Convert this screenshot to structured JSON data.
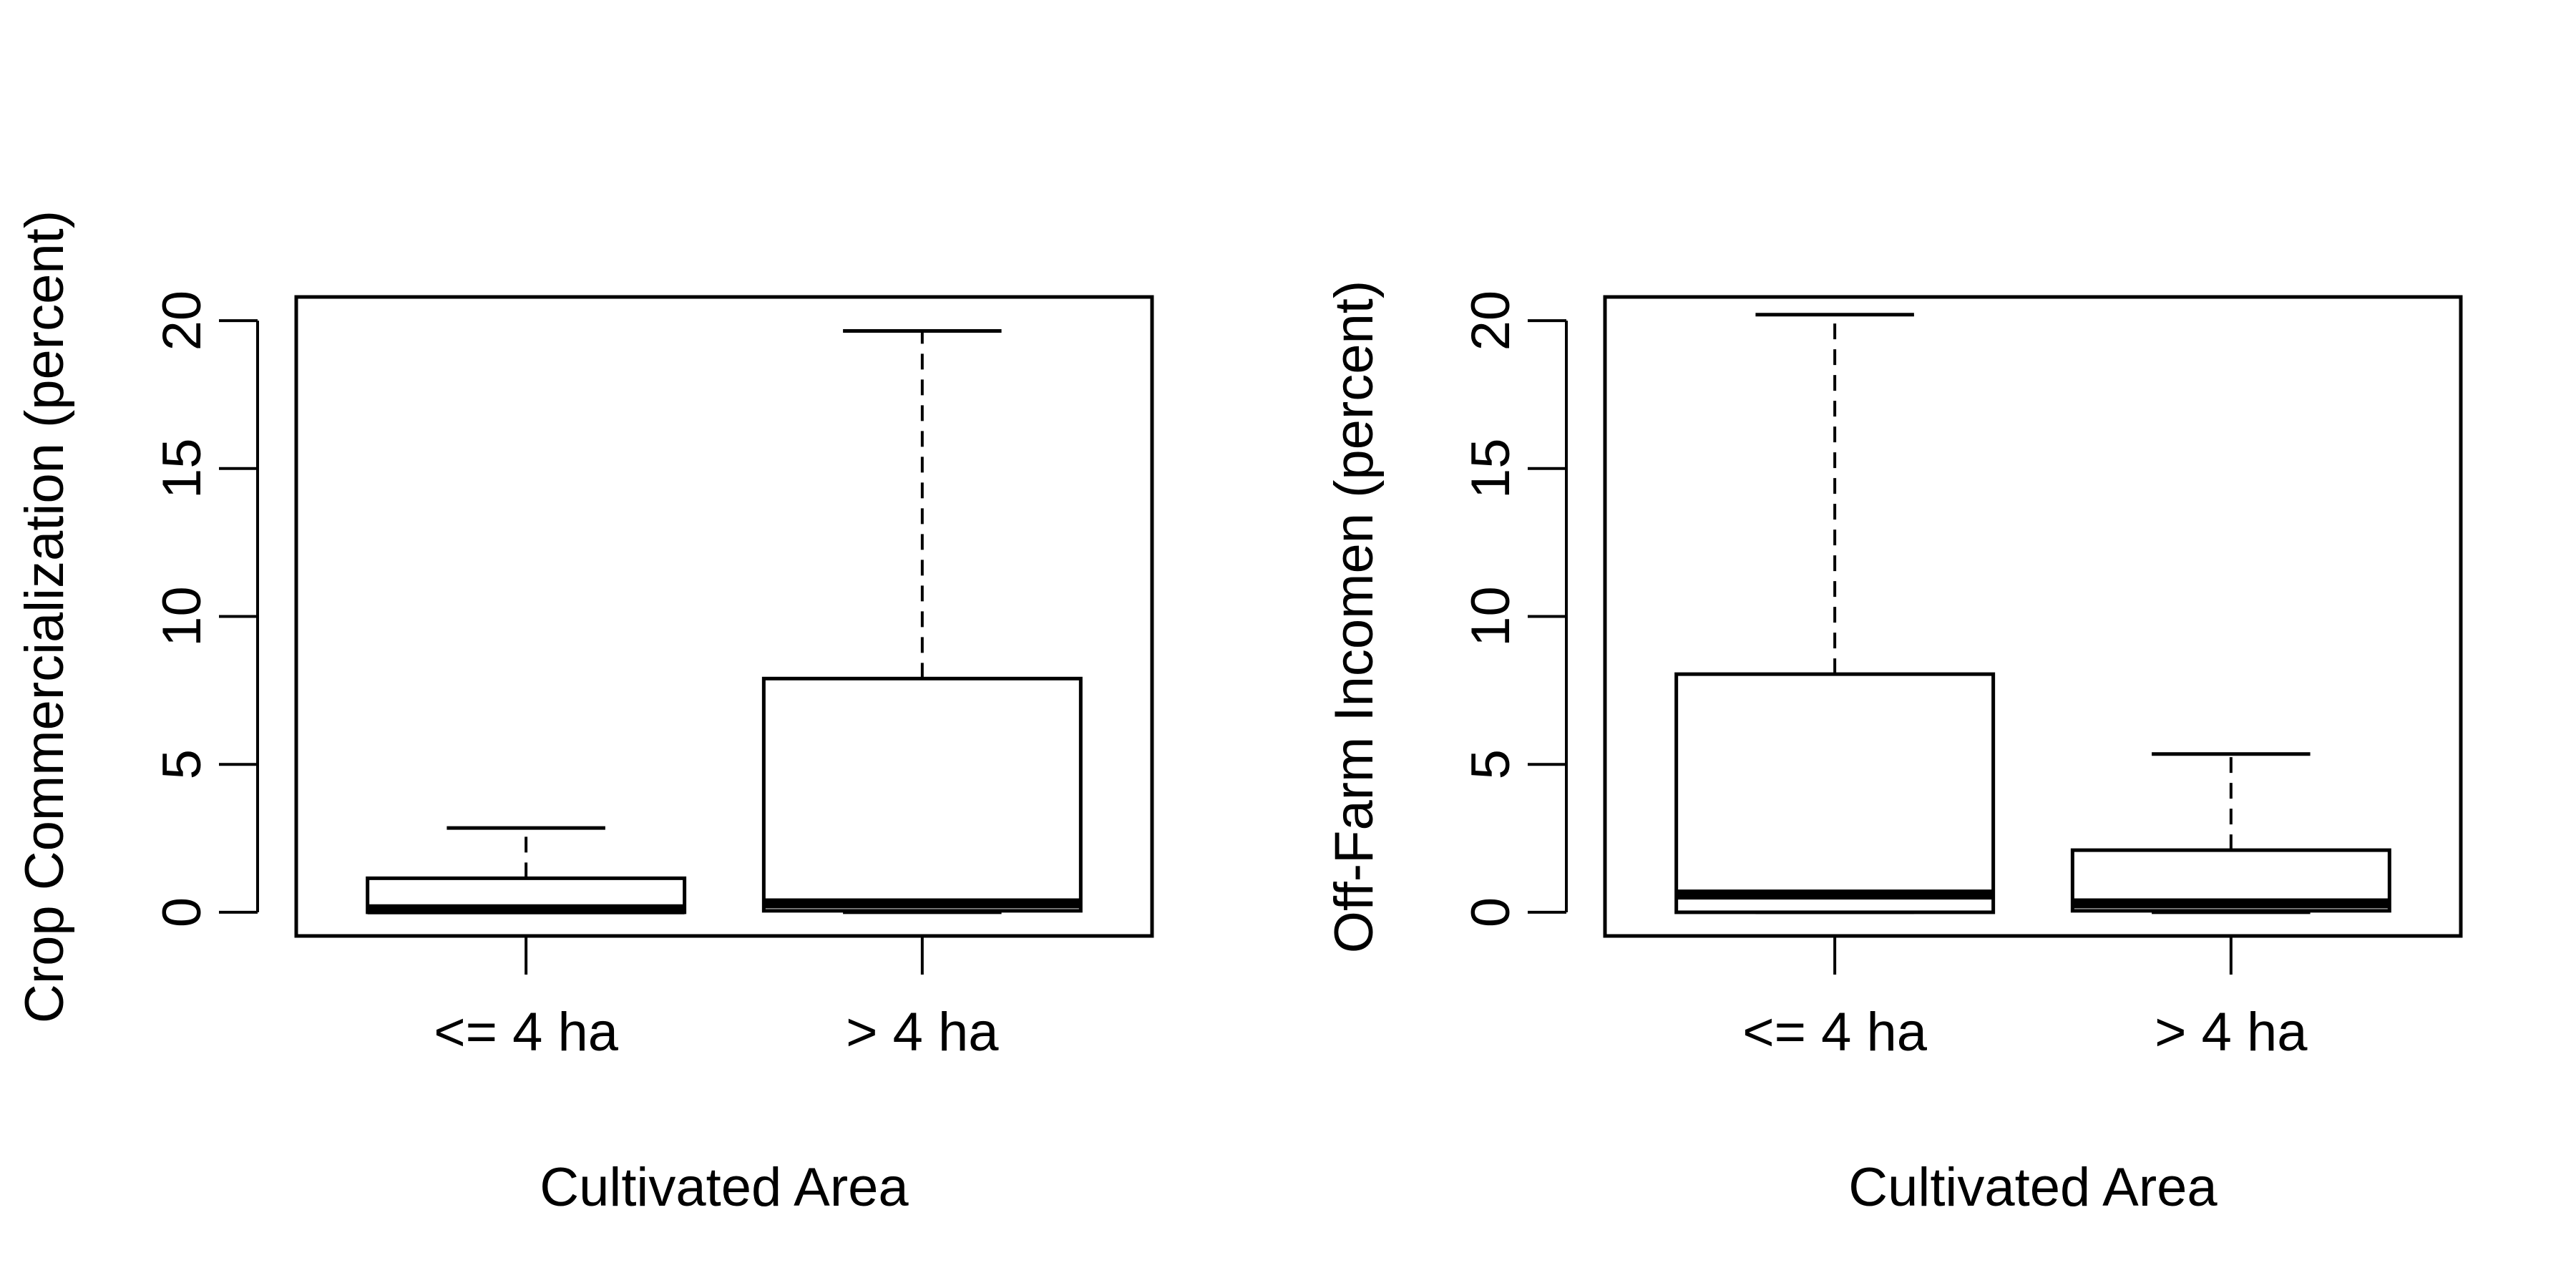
{
  "chart_data": [
    {
      "type": "box",
      "title": "",
      "xlabel": "Cultivated Area",
      "ylabel": "Crop Commercialization (percent)",
      "categories": [
        "<= 4 ha",
        "> 4 ha"
      ],
      "ylim": [
        -0.8,
        20.8
      ],
      "yticks": [
        "0",
        "5",
        "10",
        "15",
        "20"
      ],
      "grid": false,
      "series": [
        {
          "category": "<= 4 ha",
          "whisker_low": 0,
          "q1": 0,
          "median": 0.1,
          "q3": 1.15,
          "whisker_high": 2.85
        },
        {
          "category": "> 4 ha",
          "whisker_low": 0,
          "q1": 0.05,
          "median": 0.3,
          "q3": 7.9,
          "whisker_high": 19.65
        }
      ]
    },
    {
      "type": "box",
      "title": "",
      "xlabel": "Cultivated Area",
      "ylabel": "Off-Farm Incomen (percent)",
      "categories": [
        "<= 4 ha",
        "> 4 ha"
      ],
      "ylim": [
        -0.8,
        20.8
      ],
      "yticks": [
        "0",
        "5",
        "10",
        "15",
        "20"
      ],
      "grid": false,
      "series": [
        {
          "category": "<= 4 ha",
          "whisker_low": 0,
          "q1": 0,
          "median": 0.6,
          "q3": 8.05,
          "whisker_high": 20.2
        },
        {
          "category": "> 4 ha",
          "whisker_low": 0,
          "q1": 0.05,
          "median": 0.3,
          "q3": 2.1,
          "whisker_high": 5.35
        }
      ]
    }
  ]
}
